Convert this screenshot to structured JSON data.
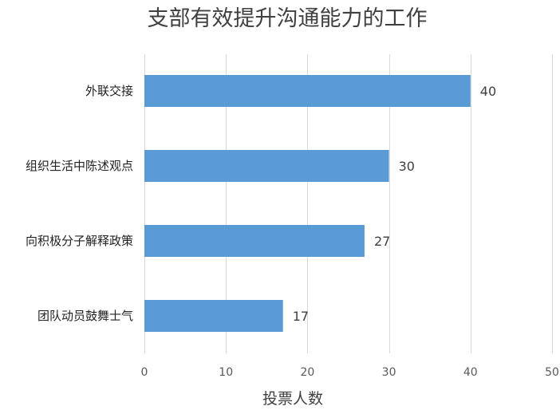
{
  "chart_data": {
    "type": "bar",
    "orientation": "horizontal",
    "title": "支部有效提升沟通能力的工作",
    "xlabel": "投票人数",
    "ylabel": "",
    "categories": [
      "外联交接",
      "组织生活中陈述观点",
      "向积极分子解释政策",
      "团队动员鼓舞士气"
    ],
    "values": [
      40,
      30,
      27,
      17
    ],
    "xlim": [
      0,
      50
    ],
    "xticks": [
      0,
      10,
      20,
      30,
      40,
      50
    ],
    "grid": true,
    "legend": "none",
    "bar_color": "#5b9bd5"
  }
}
